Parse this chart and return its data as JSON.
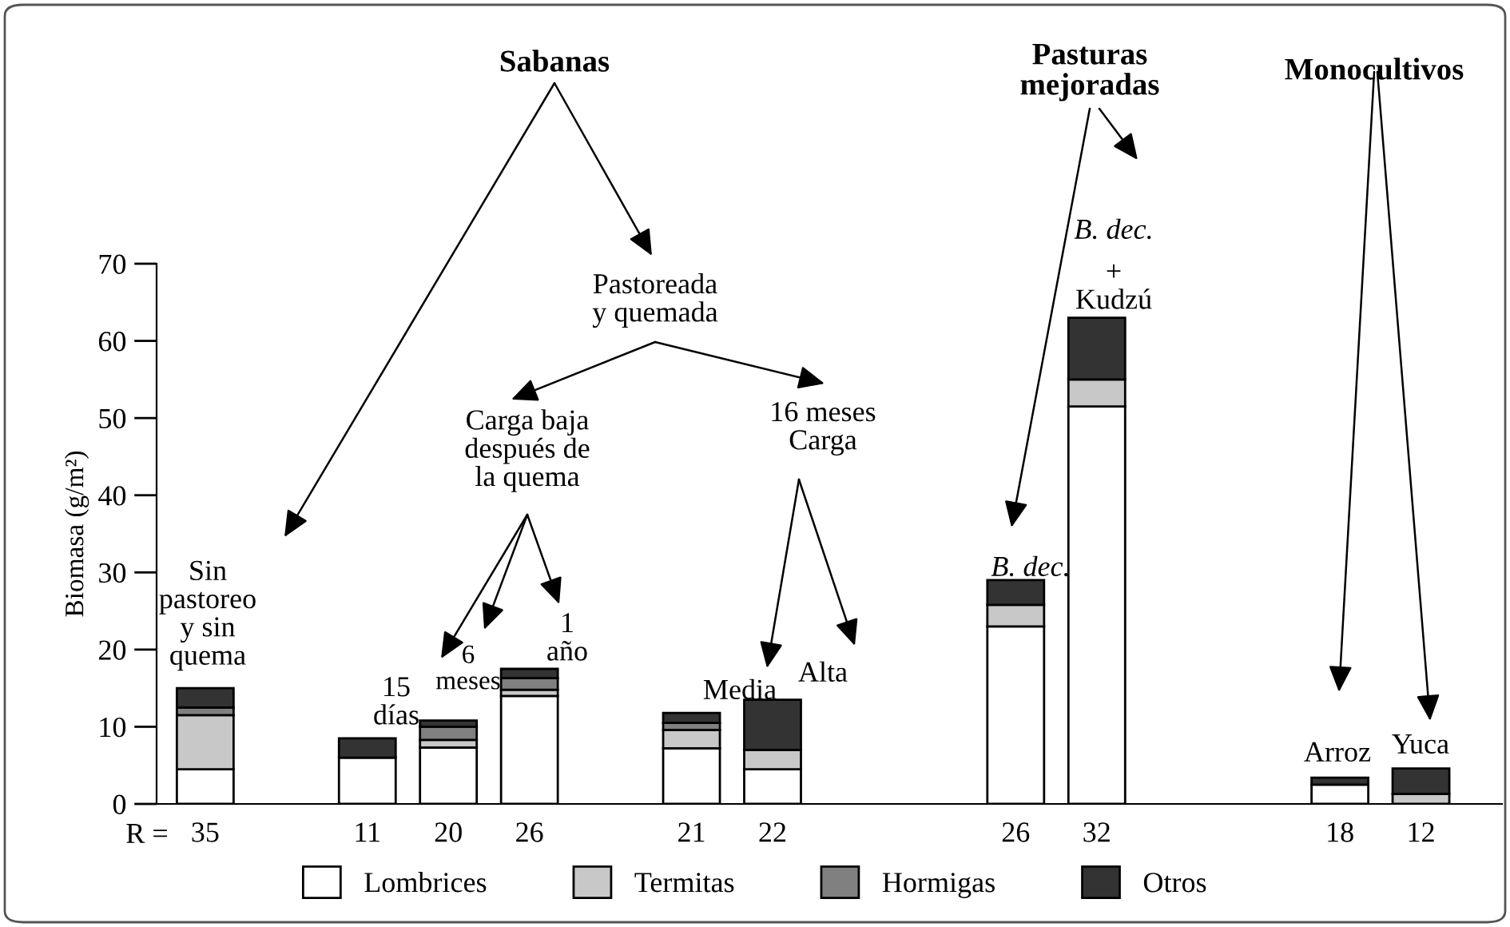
{
  "chart_data": {
    "type": "bar",
    "stacked": true,
    "ylabel": "Biomasa (g/m²)",
    "ylim": [
      0,
      70
    ],
    "yticks": [
      0,
      10,
      20,
      30,
      40,
      50,
      60,
      70
    ],
    "grid": false,
    "legend": "bottom",
    "categories": [
      "35",
      null,
      "11",
      "20",
      "26",
      null,
      "21",
      "22",
      null,
      null,
      "26",
      "32",
      null,
      null,
      "18",
      "12"
    ],
    "series": [
      {
        "name": "Lombrices",
        "color": "#ffffff",
        "values": [
          4.5,
          null,
          6,
          7.3,
          14,
          null,
          7.2,
          4.5,
          null,
          null,
          23,
          51.5,
          null,
          null,
          2.5,
          null
        ]
      },
      {
        "name": "Termitas",
        "color": "#c8c8c8",
        "values": [
          7,
          null,
          null,
          1,
          0.8,
          null,
          2.4,
          2.5,
          null,
          null,
          2.8,
          3.5,
          null,
          null,
          null,
          1.3
        ]
      },
      {
        "name": "Hormigas",
        "color": "#808080",
        "values": [
          1,
          null,
          null,
          1.7,
          1.5,
          null,
          0.9,
          null,
          null,
          null,
          null,
          null,
          null,
          null,
          null,
          null
        ]
      },
      {
        "name": "Otros",
        "color": "#333333",
        "values": [
          2.5,
          null,
          2.5,
          0.8,
          1.2,
          null,
          1.3,
          6.5,
          null,
          null,
          3.2,
          8,
          null,
          null,
          0.9,
          3.3
        ]
      }
    ],
    "annotations": [
      "Sabanas",
      "Pasturas\nmejoradas",
      "Monocultivos",
      "Pastoreada\ny quemada",
      "Carga baja\ndespués de\nla quema",
      "16 meses\nCarga",
      "Sin\npastoreo\ny sin\nquema",
      "15\ndías",
      "6\nmeses",
      "1\naño",
      "Media",
      "Alta",
      "B. dec.",
      "B. dec.",
      "+\nKudzú",
      "Arroz",
      "Yuca",
      "R ="
    ]
  }
}
